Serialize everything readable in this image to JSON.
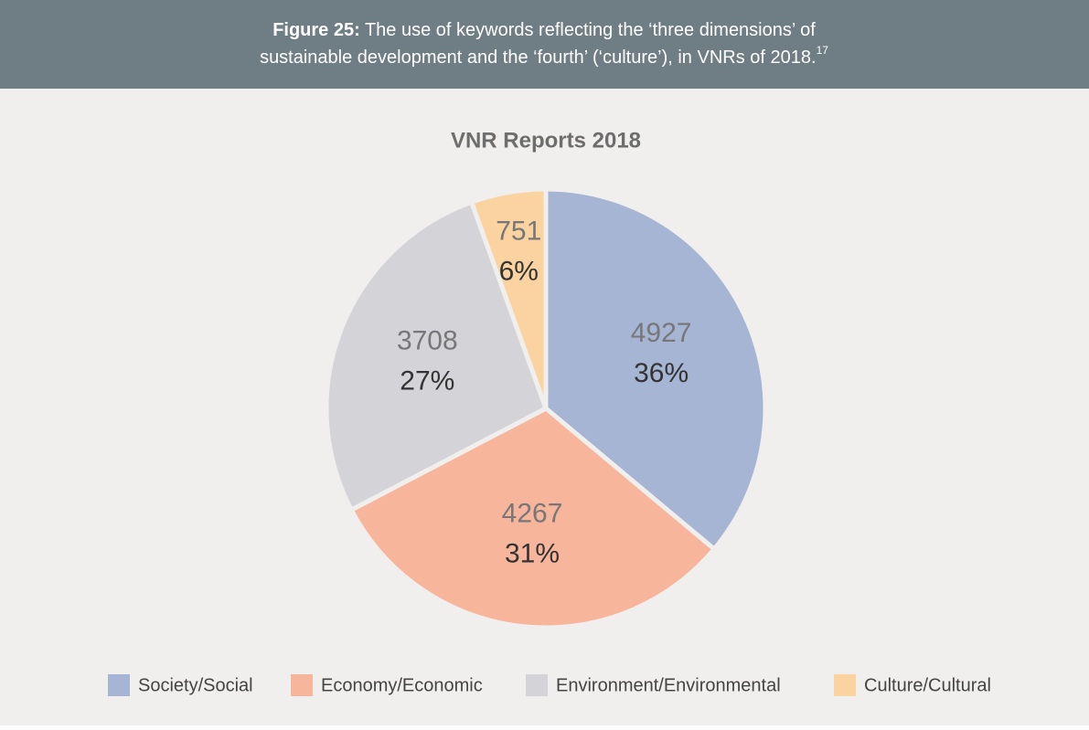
{
  "figure": {
    "label": "Figure 25:",
    "line1": "The use of keywords reflecting the ‘three dimensions’ of",
    "line2": "sustainable development and the ‘fourth’ (‘culture’), in VNRs of 2018.",
    "footnote": "17"
  },
  "chart_data": {
    "type": "pie",
    "title": "VNR Reports 2018",
    "categories": [
      "Society/Social",
      "Economy/Economic",
      "Environment/Environmental",
      "Culture/Cultural"
    ],
    "values": [
      4927,
      4267,
      3708,
      751
    ],
    "percent_labels": [
      "36%",
      "31%",
      "27%",
      "6%"
    ],
    "colors": [
      "#a6b5d4",
      "#f7b59b",
      "#d4d3d8",
      "#fbd3a1"
    ],
    "legend": "bottom"
  }
}
